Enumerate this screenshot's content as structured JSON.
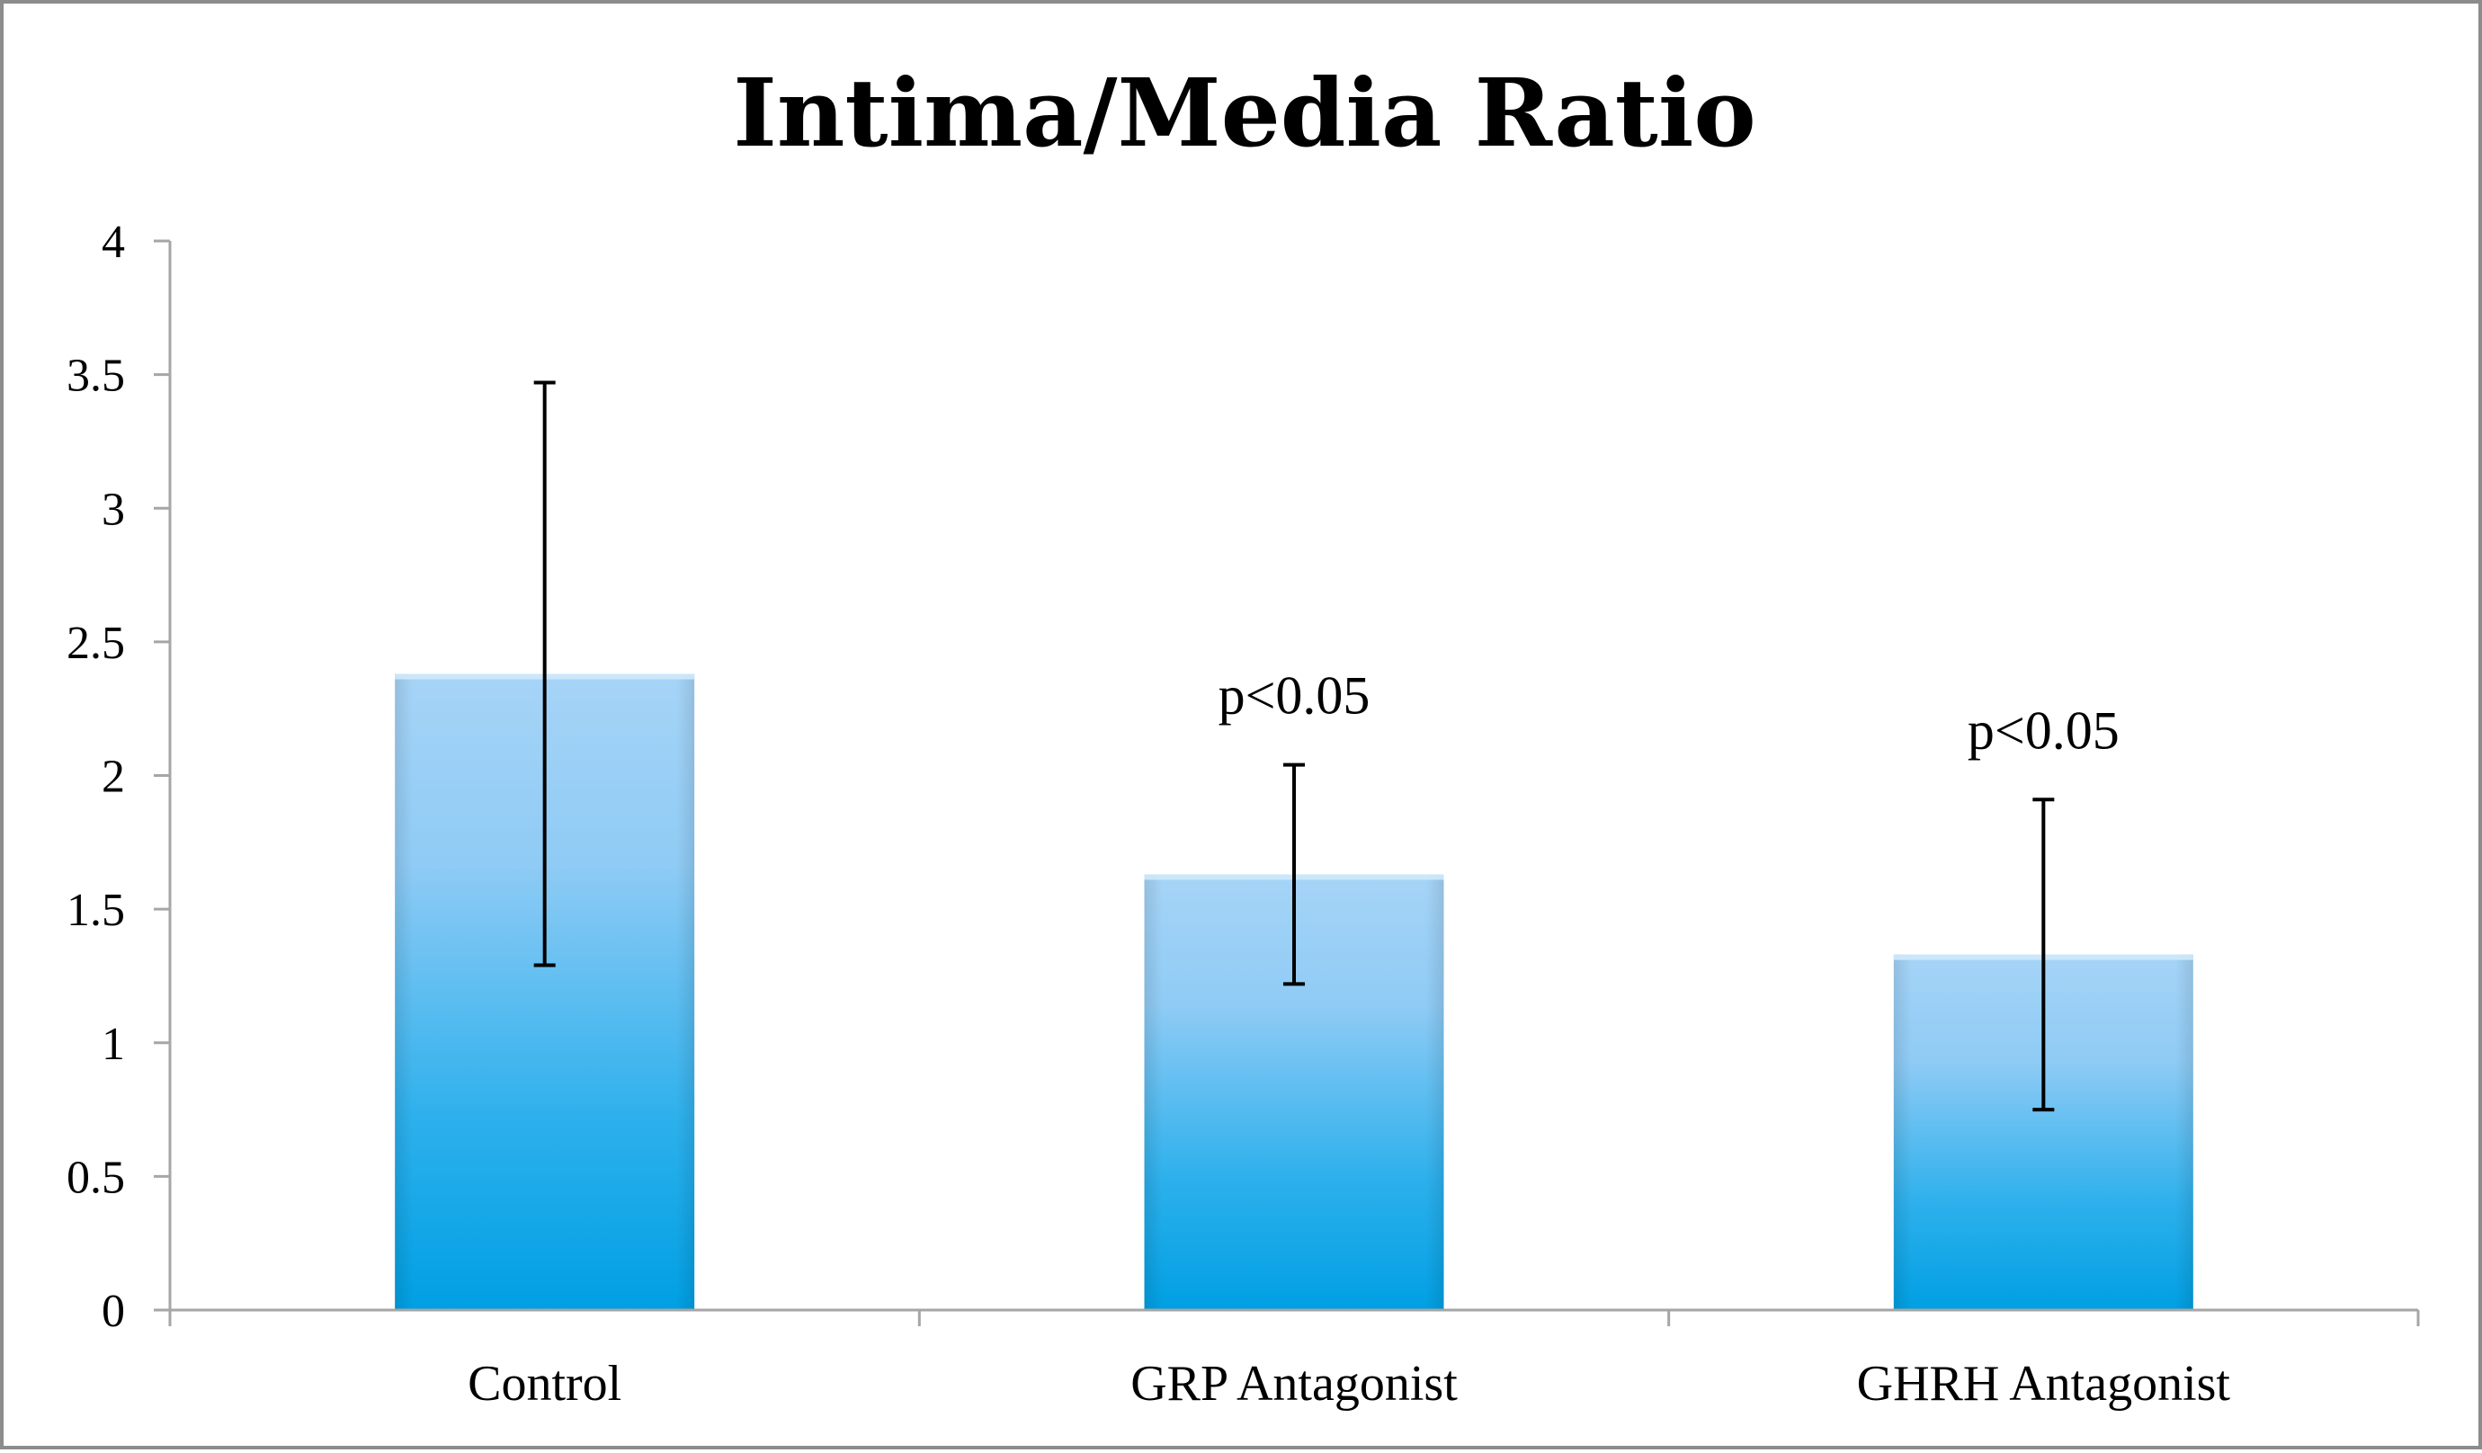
{
  "chart_data": {
    "type": "bar",
    "title": "Intima/Media Ratio",
    "xlabel": "",
    "ylabel": "",
    "categories": [
      "Control",
      "GRP Antagonist",
      "GHRH Antagonist"
    ],
    "values": [
      2.38,
      1.63,
      1.33
    ],
    "error_bars": [
      {
        "low": 1.29,
        "high": 3.47
      },
      {
        "low": 1.22,
        "high": 2.04
      },
      {
        "low": 0.75,
        "high": 1.91
      }
    ],
    "annotations": [
      "",
      "p<0.05",
      "p<0.05"
    ],
    "ylim": [
      0,
      4
    ],
    "yticks": [
      0,
      0.5,
      1,
      1.5,
      2,
      2.5,
      3,
      3.5,
      4
    ],
    "ytick_labels": [
      "0",
      "0.5",
      "1",
      "1.5",
      "2",
      "2.5",
      "3",
      "3.5",
      "4"
    ],
    "grid": false,
    "legend": "none",
    "bar_color_top": "#a6d4f7",
    "bar_color_bottom": "#009fe3",
    "axis_color": "#a6a6a6",
    "frame_color": "#8c8c8c"
  }
}
